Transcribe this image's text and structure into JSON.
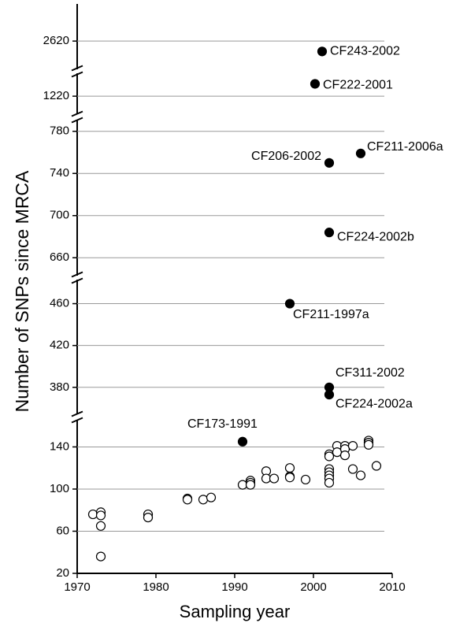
{
  "chart_data": {
    "type": "scatter",
    "x_label": "Sampling year",
    "y_label": "Number of SNPs since MRCA",
    "xlim": [
      1970,
      2010
    ],
    "xticks": [
      1970,
      1980,
      1990,
      2000,
      2010
    ],
    "grid": true,
    "y_segments": [
      {
        "ylim": [
          20,
          165
        ],
        "yticks": [
          20,
          60,
          100,
          140
        ]
      },
      {
        "ylim": [
          355,
          483
        ],
        "yticks": [
          380,
          420,
          460
        ]
      },
      {
        "ylim": [
          643,
          791
        ],
        "yticks": [
          660,
          700,
          740,
          780
        ]
      },
      {
        "ylim": [
          1103,
          1369
        ],
        "yticks": [
          1220
        ]
      },
      {
        "ylim": [
          2430,
          2870
        ],
        "yticks": [
          2620
        ]
      }
    ],
    "series": [
      {
        "marker": "open",
        "color": "#000000",
        "x": [
          1972,
          1973,
          1973,
          1973,
          1973,
          1979,
          1979,
          1984,
          1984,
          1986,
          1987,
          1991,
          1992,
          1992,
          1992,
          1994,
          1994,
          1995,
          1997,
          1997,
          1997,
          1999,
          2002,
          2002,
          2002,
          2002,
          2002,
          2002,
          2002,
          2003,
          2003,
          2004,
          2004,
          2004,
          2005,
          2005,
          2006,
          2007,
          2007,
          2007,
          2008
        ],
        "values": [
          76,
          78,
          75,
          65,
          36,
          76,
          73,
          91,
          90,
          90,
          92,
          104,
          108,
          106,
          104,
          117,
          110,
          110,
          120,
          112,
          111,
          109,
          133,
          131,
          119,
          116,
          113,
          110,
          106,
          141,
          135,
          141,
          138,
          132,
          141,
          119,
          113,
          146,
          144,
          142,
          122
        ]
      },
      {
        "marker": "filled",
        "color": "#000000",
        "x": [
          1991,
          2002,
          2002,
          1997,
          2002,
          2002,
          2006,
          2000.2,
          2001.1
        ],
        "values": [
          145,
          380,
          373,
          460,
          684,
          750,
          759,
          1300,
          2550
        ],
        "labels": [
          "CF173-1991",
          "CF311-2002",
          "CF224-2002a",
          "CF211-1997a",
          "CF224-2002b",
          "CF206-2002",
          "CF211-2006a",
          "CF222-2001",
          "CF243-2002"
        ]
      }
    ]
  }
}
